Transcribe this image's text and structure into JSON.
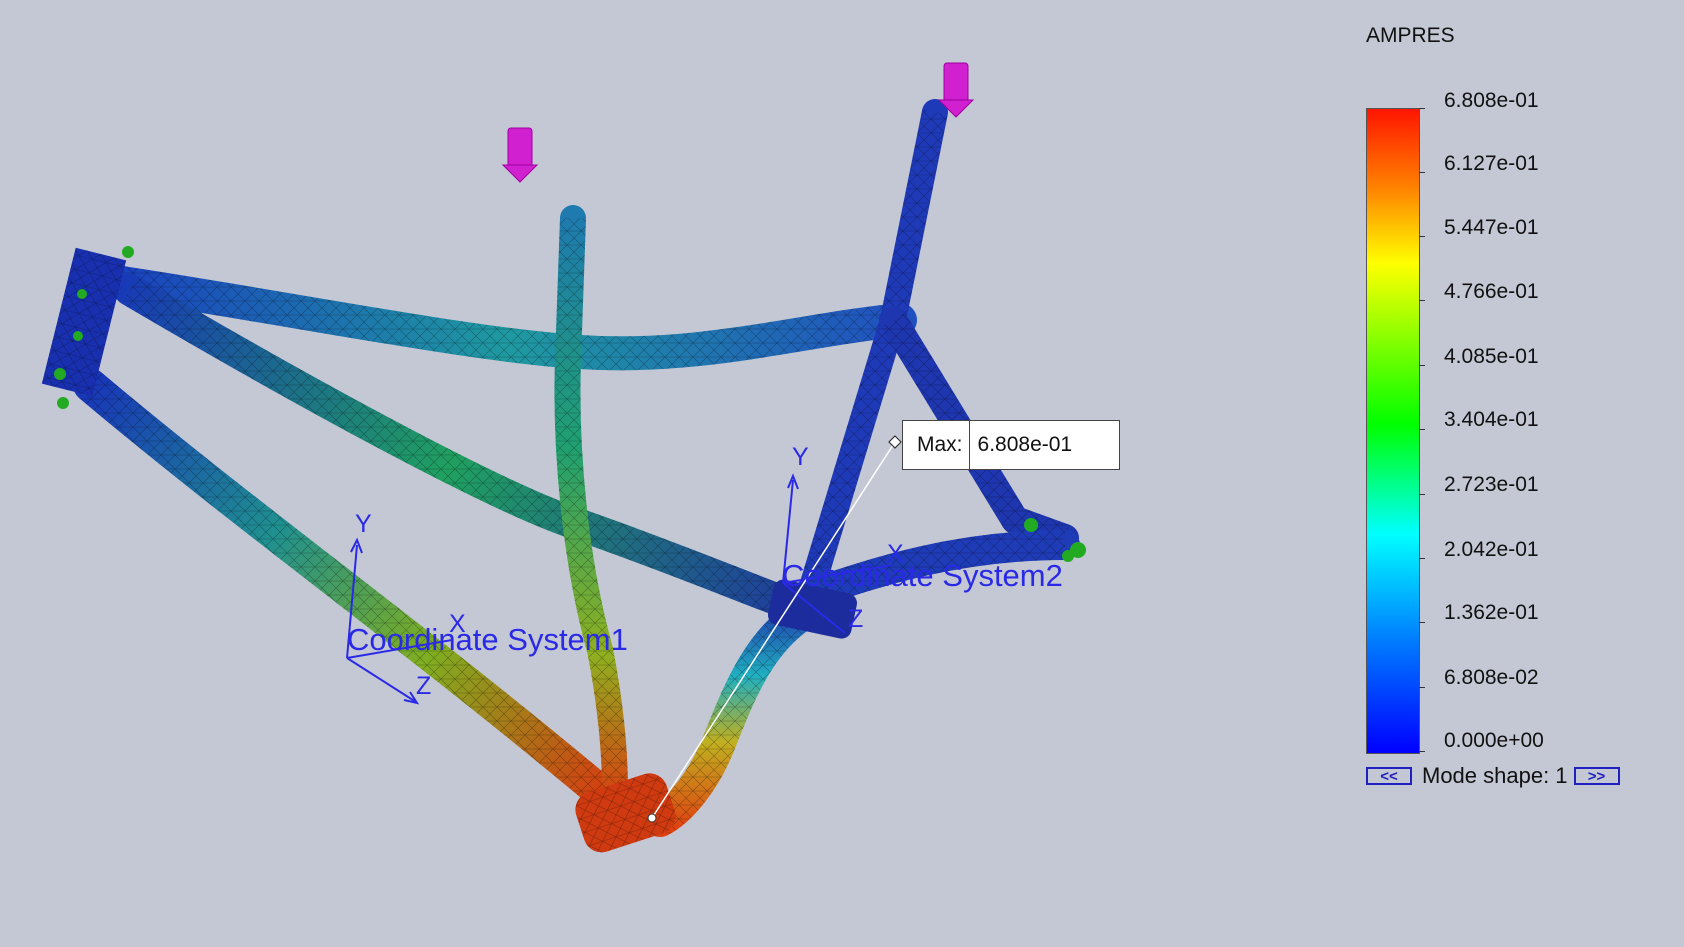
{
  "legend": {
    "title": "AMPRES",
    "ticks": [
      "6.808e-01",
      "6.127e-01",
      "5.447e-01",
      "4.766e-01",
      "4.085e-01",
      "3.404e-01",
      "2.723e-01",
      "2.042e-01",
      "1.362e-01",
      "6.808e-02",
      "0.000e+00"
    ],
    "colors": {
      "max": "#ff1500",
      "high": "#ff8000",
      "mid_high": "#ffff00",
      "mid": "#00ff00",
      "mid_low": "#00ffff",
      "low": "#0080ff",
      "min": "#0000ff"
    }
  },
  "mode": {
    "prev_label": "<<",
    "label": "Mode shape: 1",
    "next_label": ">>"
  },
  "probe": {
    "label": "Max:",
    "value": "6.808e-01"
  },
  "coordinate_systems": [
    {
      "label": "Coordinate System1",
      "axes": {
        "x": "X",
        "y": "Y",
        "z": "Z"
      }
    },
    {
      "label": "Coordinate System2",
      "axes": {
        "x": "X",
        "y": "Y",
        "z": "Z"
      }
    }
  ],
  "icons": {
    "load": "arrow-load-icon",
    "fixture": "fixture-icon"
  },
  "colors": {
    "background": "#c4c8d4",
    "annotation": "#2a2ae6",
    "load": "#d020d0",
    "fixture": "#22aa22"
  }
}
